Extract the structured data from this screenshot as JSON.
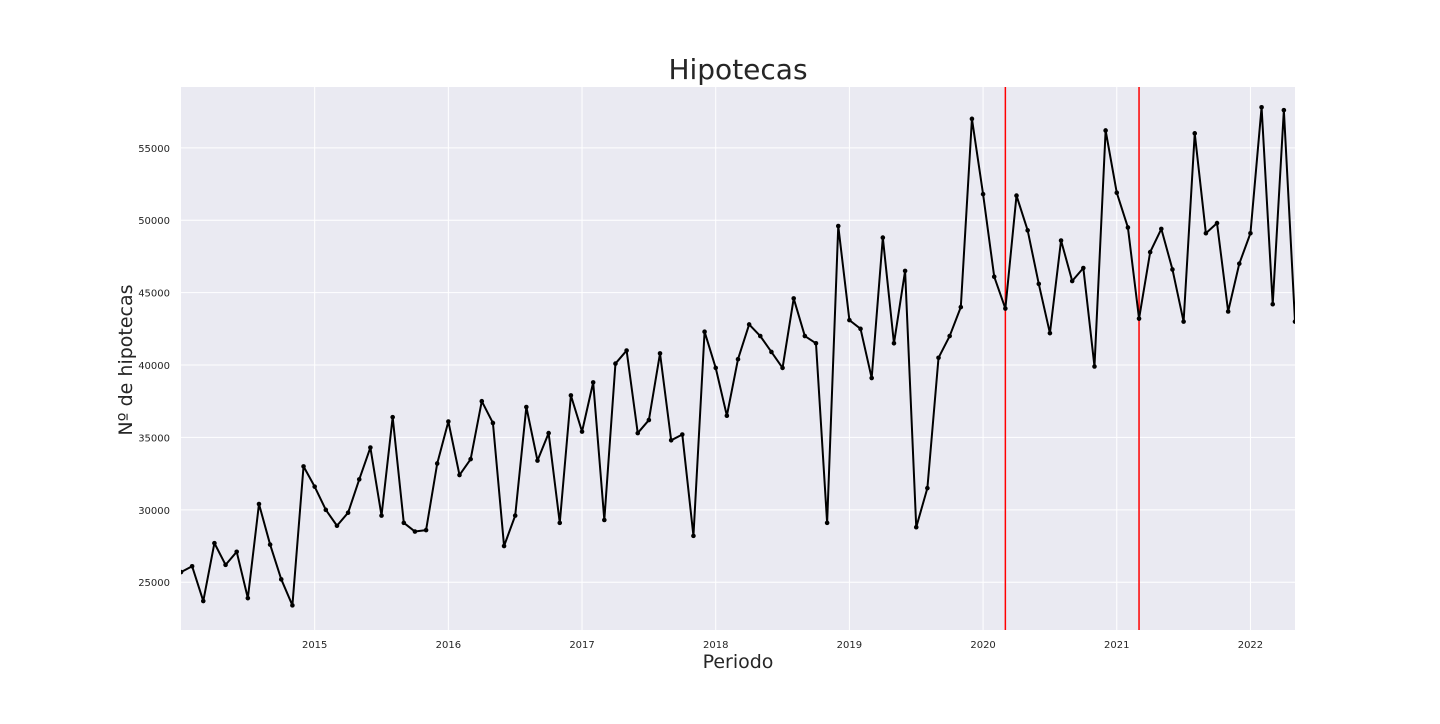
{
  "chart_data": {
    "type": "line",
    "title": "Hipotecas",
    "xlabel": "Periodo",
    "ylabel": "Nº de hipotecas",
    "colors": {
      "background": "#eaeaf2",
      "grid": "#ffffff",
      "line": "#000000",
      "markers": "#000000",
      "vertical_lines": "#ff0000"
    },
    "grid": true,
    "x_range": [
      "2014-01",
      "2022-05"
    ],
    "ylim": [
      21700,
      59200
    ],
    "x_ticks": [
      {
        "date": "2015-01",
        "label": "2015"
      },
      {
        "date": "2016-01",
        "label": "2016"
      },
      {
        "date": "2017-01",
        "label": "2017"
      },
      {
        "date": "2018-01",
        "label": "2018"
      },
      {
        "date": "2019-01",
        "label": "2019"
      },
      {
        "date": "2020-01",
        "label": "2020"
      },
      {
        "date": "2021-01",
        "label": "2021"
      },
      {
        "date": "2022-01",
        "label": "2022"
      }
    ],
    "y_ticks": [
      {
        "value": 25000,
        "label": "25000"
      },
      {
        "value": 30000,
        "label": "30000"
      },
      {
        "value": 35000,
        "label": "35000"
      },
      {
        "value": 40000,
        "label": "40000"
      },
      {
        "value": 45000,
        "label": "45000"
      },
      {
        "value": 50000,
        "label": "50000"
      },
      {
        "value": 55000,
        "label": "55000"
      }
    ],
    "vertical_lines": [
      "2020-03",
      "2021-03"
    ],
    "series": [
      {
        "x": [
          "2014-01",
          "2014-02",
          "2014-03",
          "2014-04",
          "2014-05",
          "2014-06",
          "2014-07",
          "2014-08",
          "2014-09",
          "2014-10",
          "2014-11",
          "2014-12",
          "2015-01",
          "2015-02",
          "2015-03",
          "2015-04",
          "2015-05",
          "2015-06",
          "2015-07",
          "2015-08",
          "2015-09",
          "2015-10",
          "2015-11",
          "2015-12",
          "2016-01",
          "2016-02",
          "2016-03",
          "2016-04",
          "2016-05",
          "2016-06",
          "2016-07",
          "2016-08",
          "2016-09",
          "2016-10",
          "2016-11",
          "2016-12",
          "2017-01",
          "2017-02",
          "2017-03",
          "2017-04",
          "2017-05",
          "2017-06",
          "2017-07",
          "2017-08",
          "2017-09",
          "2017-10",
          "2017-11",
          "2017-12",
          "2018-01",
          "2018-02",
          "2018-03",
          "2018-04",
          "2018-05",
          "2018-06",
          "2018-07",
          "2018-08",
          "2018-09",
          "2018-10",
          "2018-11",
          "2018-12",
          "2019-01",
          "2019-02",
          "2019-03",
          "2019-04",
          "2019-05",
          "2019-06",
          "2019-07",
          "2019-08",
          "2019-09",
          "2019-10",
          "2019-11",
          "2019-12",
          "2020-01",
          "2020-02",
          "2020-03",
          "2020-04",
          "2020-05",
          "2020-06",
          "2020-07",
          "2020-08",
          "2020-09",
          "2020-10",
          "2020-11",
          "2020-12",
          "2021-01",
          "2021-02",
          "2021-03",
          "2021-04",
          "2021-05",
          "2021-06",
          "2021-07",
          "2021-08",
          "2021-09",
          "2021-10",
          "2021-11",
          "2021-12",
          "2022-01",
          "2022-02",
          "2022-03",
          "2022-04",
          "2022-05"
        ],
        "values": [
          25700,
          26100,
          23700,
          27700,
          26200,
          27100,
          23900,
          30400,
          27600,
          25200,
          23400,
          33000,
          31600,
          30000,
          28900,
          29800,
          32100,
          34300,
          29600,
          36400,
          29100,
          28500,
          28600,
          33200,
          36100,
          32400,
          33500,
          37500,
          36000,
          27500,
          29600,
          37100,
          33400,
          35300,
          29100,
          37900,
          35400,
          38800,
          29300,
          40100,
          41000,
          35300,
          36200,
          40800,
          34800,
          35200,
          28200,
          42300,
          39800,
          36500,
          40400,
          42800,
          42000,
          40900,
          39800,
          44600,
          42000,
          41500,
          29100,
          49600,
          43100,
          42500,
          39100,
          48800,
          41500,
          46500,
          28800,
          31500,
          40500,
          42000,
          44000,
          57000,
          51800,
          46100,
          43900,
          51700,
          49300,
          45600,
          42200,
          48600,
          45800,
          46700,
          39900,
          56200,
          51900,
          49500,
          43200,
          47800,
          49400,
          46600,
          43000,
          56000,
          49100,
          49800,
          43700,
          47000,
          49100,
          57800,
          44200,
          57600,
          43000
        ]
      }
    ]
  }
}
